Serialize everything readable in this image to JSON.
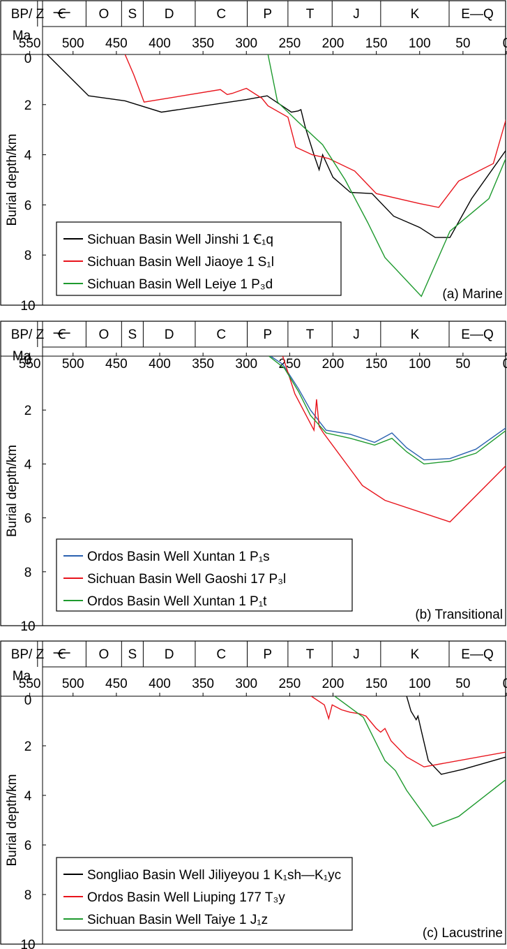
{
  "colors": {
    "black": "#000000",
    "red": "#e8141c",
    "green": "#1e9a2e",
    "blue": "#2b61b0"
  },
  "axis_labels": {
    "time": "BP/ Ma",
    "time_line1": "BP/",
    "time_line2": "Ma",
    "depth": "Burial depth/km"
  },
  "period_labels": [
    "Z",
    "Ꞓ",
    "O",
    "S",
    "D",
    "C",
    "P",
    "T",
    "J",
    "K",
    "E—Q"
  ],
  "chart_data": [
    {
      "type": "line",
      "panel_label": "(a) Marine",
      "xlabel": "BP/ Ma",
      "ylabel": "Burial depth/km",
      "xlim": [
        580,
        0
      ],
      "ylim": [
        0,
        10
      ],
      "x_ticks": [
        550,
        500,
        450,
        400,
        350,
        300,
        250,
        200,
        150,
        100,
        50,
        0
      ],
      "y_ticks": [
        0,
        2,
        4,
        6,
        8,
        10
      ],
      "periods": [
        "Z",
        "Ꞓ",
        "O",
        "S",
        "D",
        "C",
        "P",
        "T",
        "J",
        "K",
        "E—Q"
      ],
      "legend_placement": "bottom-left",
      "series": [
        {
          "name": "Sichuan Basin Well Jinshi 1 Ꞓ₁q",
          "color": "black",
          "points": [
            [
              530,
              0
            ],
            [
              482,
              1.65
            ],
            [
              440,
              1.85
            ],
            [
              398,
              2.3
            ],
            [
              300,
              1.8
            ],
            [
              276,
              1.65
            ],
            [
              248,
              2.3
            ],
            [
              240,
              2.25
            ],
            [
              237,
              2.2
            ],
            [
              232,
              2.9
            ],
            [
              222,
              4.0
            ],
            [
              216,
              4.6
            ],
            [
              212,
              4.0
            ],
            [
              200,
              4.9
            ],
            [
              180,
              5.5
            ],
            [
              155,
              5.55
            ],
            [
              130,
              6.45
            ],
            [
              100,
              6.9
            ],
            [
              82,
              7.3
            ],
            [
              65,
              7.3
            ],
            [
              40,
              5.75
            ],
            [
              0,
              3.8
            ]
          ]
        },
        {
          "name": "Sichuan Basin Well Jiaoye 1 S₁l",
          "color": "red",
          "points": [
            [
              440,
              0
            ],
            [
              430,
              0.8
            ],
            [
              418,
              1.9
            ],
            [
              330,
              1.4
            ],
            [
              322,
              1.6
            ],
            [
              316,
              1.55
            ],
            [
              300,
              1.35
            ],
            [
              282,
              1.75
            ],
            [
              275,
              2.05
            ],
            [
              252,
              2.5
            ],
            [
              243,
              3.7
            ],
            [
              224,
              4.0
            ],
            [
              205,
              4.15
            ],
            [
              175,
              4.65
            ],
            [
              150,
              5.55
            ],
            [
              100,
              5.95
            ],
            [
              78,
              6.1
            ],
            [
              55,
              5.05
            ],
            [
              15,
              4.35
            ],
            [
              0,
              2.55
            ]
          ]
        },
        {
          "name": "Sichuan Basin Well Leiye 1 P₃d",
          "color": "green",
          "points": [
            [
              275,
              0
            ],
            [
              264,
              1.9
            ],
            [
              240,
              2.7
            ],
            [
              212,
              3.6
            ],
            [
              186,
              5.0
            ],
            [
              160,
              6.7
            ],
            [
              140,
              8.1
            ],
            [
              98,
              9.65
            ],
            [
              65,
              7.05
            ],
            [
              20,
              5.75
            ],
            [
              0,
              4.1
            ]
          ]
        }
      ]
    },
    {
      "type": "line",
      "panel_label": "(b) Transitional",
      "xlabel": "BP/ Ma",
      "ylabel": "Burial depth/km",
      "xlim": [
        580,
        0
      ],
      "ylim": [
        0,
        10
      ],
      "x_ticks": [
        550,
        500,
        450,
        400,
        350,
        300,
        250,
        200,
        150,
        100,
        50,
        0
      ],
      "y_ticks": [
        0,
        2,
        4,
        6,
        8,
        10
      ],
      "periods": [
        "Z",
        "Ꞓ",
        "O",
        "S",
        "D",
        "C",
        "P",
        "T",
        "J",
        "K",
        "E—Q"
      ],
      "legend_placement": "bottom-left",
      "series": [
        {
          "name": "Ordos Basin Well Xuntan 1 P₁s",
          "color": "blue",
          "points": [
            [
              272,
              0
            ],
            [
              258,
              0.3
            ],
            [
              240,
              1.2
            ],
            [
              226,
              2.0
            ],
            [
              208,
              2.75
            ],
            [
              180,
              2.9
            ],
            [
              152,
              3.2
            ],
            [
              132,
              2.85
            ],
            [
              115,
              3.4
            ],
            [
              95,
              3.85
            ],
            [
              65,
              3.8
            ],
            [
              35,
              3.45
            ],
            [
              0,
              2.65
            ]
          ]
        },
        {
          "name": "Sichuan Basin Well Gaoshi 17 P₃l",
          "color": "red",
          "points": [
            [
              258,
              0
            ],
            [
              244,
              1.4
            ],
            [
              222,
              2.75
            ],
            [
              219,
              1.6
            ],
            [
              216,
              2.6
            ],
            [
              211,
              2.85
            ],
            [
              166,
              4.8
            ],
            [
              140,
              5.35
            ],
            [
              65,
              6.15
            ],
            [
              0,
              4.05
            ]
          ]
        },
        {
          "name": "Ordos Basin Well Xuntan 1 P₁t",
          "color": "green",
          "points": [
            [
              274,
              0
            ],
            [
              256,
              0.45
            ],
            [
              240,
              1.3
            ],
            [
              226,
              2.2
            ],
            [
              208,
              2.85
            ],
            [
              180,
              3.05
            ],
            [
              152,
              3.3
            ],
            [
              132,
              3.05
            ],
            [
              115,
              3.55
            ],
            [
              95,
              4.0
            ],
            [
              65,
              3.9
            ],
            [
              35,
              3.6
            ],
            [
              0,
              2.75
            ]
          ]
        }
      ]
    },
    {
      "type": "line",
      "panel_label": "(c) Lacustrine",
      "xlabel": "BP/ Ma",
      "ylabel": "Burial depth/km",
      "xlim": [
        580,
        0
      ],
      "ylim": [
        0,
        10
      ],
      "x_ticks": [
        550,
        500,
        450,
        400,
        350,
        300,
        250,
        200,
        150,
        100,
        50,
        0
      ],
      "y_ticks": [
        0,
        2,
        4,
        6,
        8,
        10
      ],
      "periods": [
        "Z",
        "Ꞓ",
        "O",
        "S",
        "D",
        "C",
        "P",
        "T",
        "J",
        "K",
        "E—Q"
      ],
      "legend_placement": "bottom-left",
      "series": [
        {
          "name": "Songliao Basin Well Jiliyeyou 1 K₁sh—K₁yc",
          "color": "black",
          "points": [
            [
              115,
              0
            ],
            [
              110,
              0.6
            ],
            [
              104,
              0.95
            ],
            [
              102,
              0.8
            ],
            [
              98,
              1.4
            ],
            [
              90,
              2.6
            ],
            [
              75,
              3.15
            ],
            [
              50,
              2.95
            ],
            [
              0,
              2.45
            ]
          ]
        },
        {
          "name": "Ordos Basin Well Liuping 177 T₃y",
          "color": "red",
          "points": [
            [
              225,
              0
            ],
            [
              210,
              0.35
            ],
            [
              205,
              0.9
            ],
            [
              201,
              0.35
            ],
            [
              190,
              0.55
            ],
            [
              180,
              0.65
            ],
            [
              170,
              0.7
            ],
            [
              162,
              0.8
            ],
            [
              150,
              1.3
            ],
            [
              145,
              1.45
            ],
            [
              140,
              1.3
            ],
            [
              133,
              1.8
            ],
            [
              115,
              2.45
            ],
            [
              95,
              2.85
            ],
            [
              0,
              2.25
            ]
          ]
        },
        {
          "name": "Sichuan Basin Well Taiye 1 J₁z",
          "color": "green",
          "points": [
            [
              198,
              0
            ],
            [
              165,
              0.85
            ],
            [
              140,
              2.6
            ],
            [
              128,
              3.0
            ],
            [
              115,
              3.8
            ],
            [
              85,
              5.25
            ],
            [
              55,
              4.85
            ],
            [
              0,
              3.35
            ]
          ]
        }
      ]
    }
  ]
}
